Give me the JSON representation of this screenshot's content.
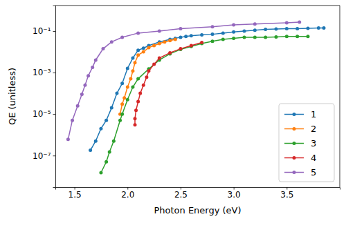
{
  "chart_data": {
    "type": "line",
    "x_label": "Photon Energy (eV)",
    "y_label": "QE (unitless)",
    "log": "y",
    "legend": "lower right",
    "marker": "o",
    "xlim": [
      1.32,
      4.0
    ],
    "ylim": [
      3e-09,
      1.7
    ],
    "xticks": [
      1.5,
      {
        "value": 2,
        "label": "2.0"
      },
      2.5,
      {
        "value": 3,
        "label": "3.0"
      },
      3.5
    ],
    "yticks": [
      {
        "value": 1e-07,
        "label": "10⁻⁷"
      },
      {
        "value": 1e-05,
        "label": "10⁻⁵"
      },
      {
        "value": 0.001,
        "label": "10⁻³"
      },
      {
        "value": 0.1,
        "label": "10⁻¹"
      }
    ],
    "series": [
      {
        "name": "1",
        "color": "#1f77b4",
        "x": [
          1.65,
          1.7,
          1.75,
          1.8,
          1.85,
          1.9,
          1.95,
          2.0,
          2.05,
          2.1,
          2.15,
          2.2,
          2.3,
          2.4,
          2.45,
          2.5,
          2.55,
          2.6,
          2.7,
          2.8,
          2.9,
          3.0,
          3.1,
          3.2,
          3.3,
          3.4,
          3.5,
          3.6,
          3.7,
          3.8,
          3.85
        ],
        "values": [
          1.8e-07,
          5e-07,
          2e-06,
          5e-06,
          2e-05,
          0.0001,
          0.0003,
          0.0016,
          0.005,
          0.012,
          0.015,
          0.02,
          0.03,
          0.04,
          0.045,
          0.05,
          0.055,
          0.06,
          0.065,
          0.07,
          0.08,
          0.09,
          0.1,
          0.11,
          0.12,
          0.125,
          0.13,
          0.13,
          0.135,
          0.14,
          0.14
        ]
      },
      {
        "name": "2",
        "color": "#ff7f0e",
        "x": [
          1.93,
          1.95,
          1.97,
          2.0,
          2.03,
          2.05,
          2.07,
          2.1,
          2.15,
          2.2,
          2.25,
          2.3,
          2.35,
          2.4,
          2.45
        ],
        "values": [
          1e-05,
          3e-05,
          6e-05,
          0.0002,
          0.0005,
          0.0012,
          0.003,
          0.007,
          0.01,
          0.016,
          0.02,
          0.025,
          0.03,
          0.035,
          0.04
        ]
      },
      {
        "name": "3",
        "color": "#2ca02c",
        "x": [
          1.75,
          1.8,
          1.83,
          1.87,
          1.93,
          1.95,
          2.0,
          2.05,
          2.1,
          2.2,
          2.3,
          2.4,
          2.5,
          2.6,
          2.7,
          2.8,
          2.9,
          3.0,
          3.1,
          3.2,
          3.3,
          3.4,
          3.5,
          3.6,
          3.7
        ],
        "values": [
          1.5e-08,
          5e-08,
          1.5e-07,
          5e-07,
          5e-06,
          1e-05,
          5e-05,
          0.0002,
          0.0005,
          0.0015,
          0.004,
          0.008,
          0.013,
          0.018,
          0.025,
          0.032,
          0.04,
          0.045,
          0.05,
          0.05,
          0.05,
          0.052,
          0.055,
          0.055,
          0.055
        ]
      },
      {
        "name": "4",
        "color": "#d62728",
        "x": [
          2.07,
          2.07,
          2.08,
          2.1,
          2.12,
          2.15,
          2.18,
          2.2,
          2.25,
          2.3,
          2.4,
          2.5,
          2.6,
          2.7
        ],
        "values": [
          3e-06,
          6e-06,
          1.5e-05,
          4e-05,
          0.0001,
          0.00025,
          0.0006,
          0.0012,
          0.0025,
          0.005,
          0.009,
          0.014,
          0.02,
          0.028
        ]
      },
      {
        "name": "5",
        "color": "#9467bd",
        "x": [
          1.44,
          1.48,
          1.53,
          1.57,
          1.6,
          1.63,
          1.67,
          1.7,
          1.77,
          1.85,
          1.95,
          2.1,
          2.3,
          2.5,
          2.8,
          3.0,
          3.2,
          3.5,
          3.62
        ],
        "values": [
          6e-07,
          5e-06,
          2.5e-05,
          9e-05,
          0.00025,
          0.0007,
          0.0018,
          0.004,
          0.014,
          0.03,
          0.05,
          0.08,
          0.1,
          0.13,
          0.16,
          0.2,
          0.22,
          0.25,
          0.27
        ]
      }
    ]
  }
}
